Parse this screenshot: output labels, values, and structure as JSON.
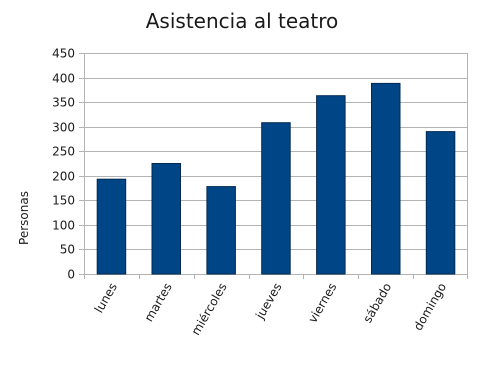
{
  "chart_data": {
    "type": "bar",
    "title": "Asistencia al teatro",
    "xlabel": "",
    "ylabel": "Personas",
    "categories": [
      "lunes",
      "martes",
      "miércoles",
      "jueves",
      "viernes",
      "sábado",
      "domingo"
    ],
    "values": [
      193,
      225,
      178,
      308,
      363,
      388,
      290
    ],
    "ylim": [
      0,
      450
    ],
    "yticks": [
      0,
      50,
      100,
      150,
      200,
      250,
      300,
      350,
      400,
      450
    ],
    "grid": true,
    "legend": "none",
    "colors": {
      "bar": "#004586",
      "bar_stroke": "#002a52",
      "grid": "#b3b3b3",
      "axis": "#b3b3b3"
    }
  }
}
